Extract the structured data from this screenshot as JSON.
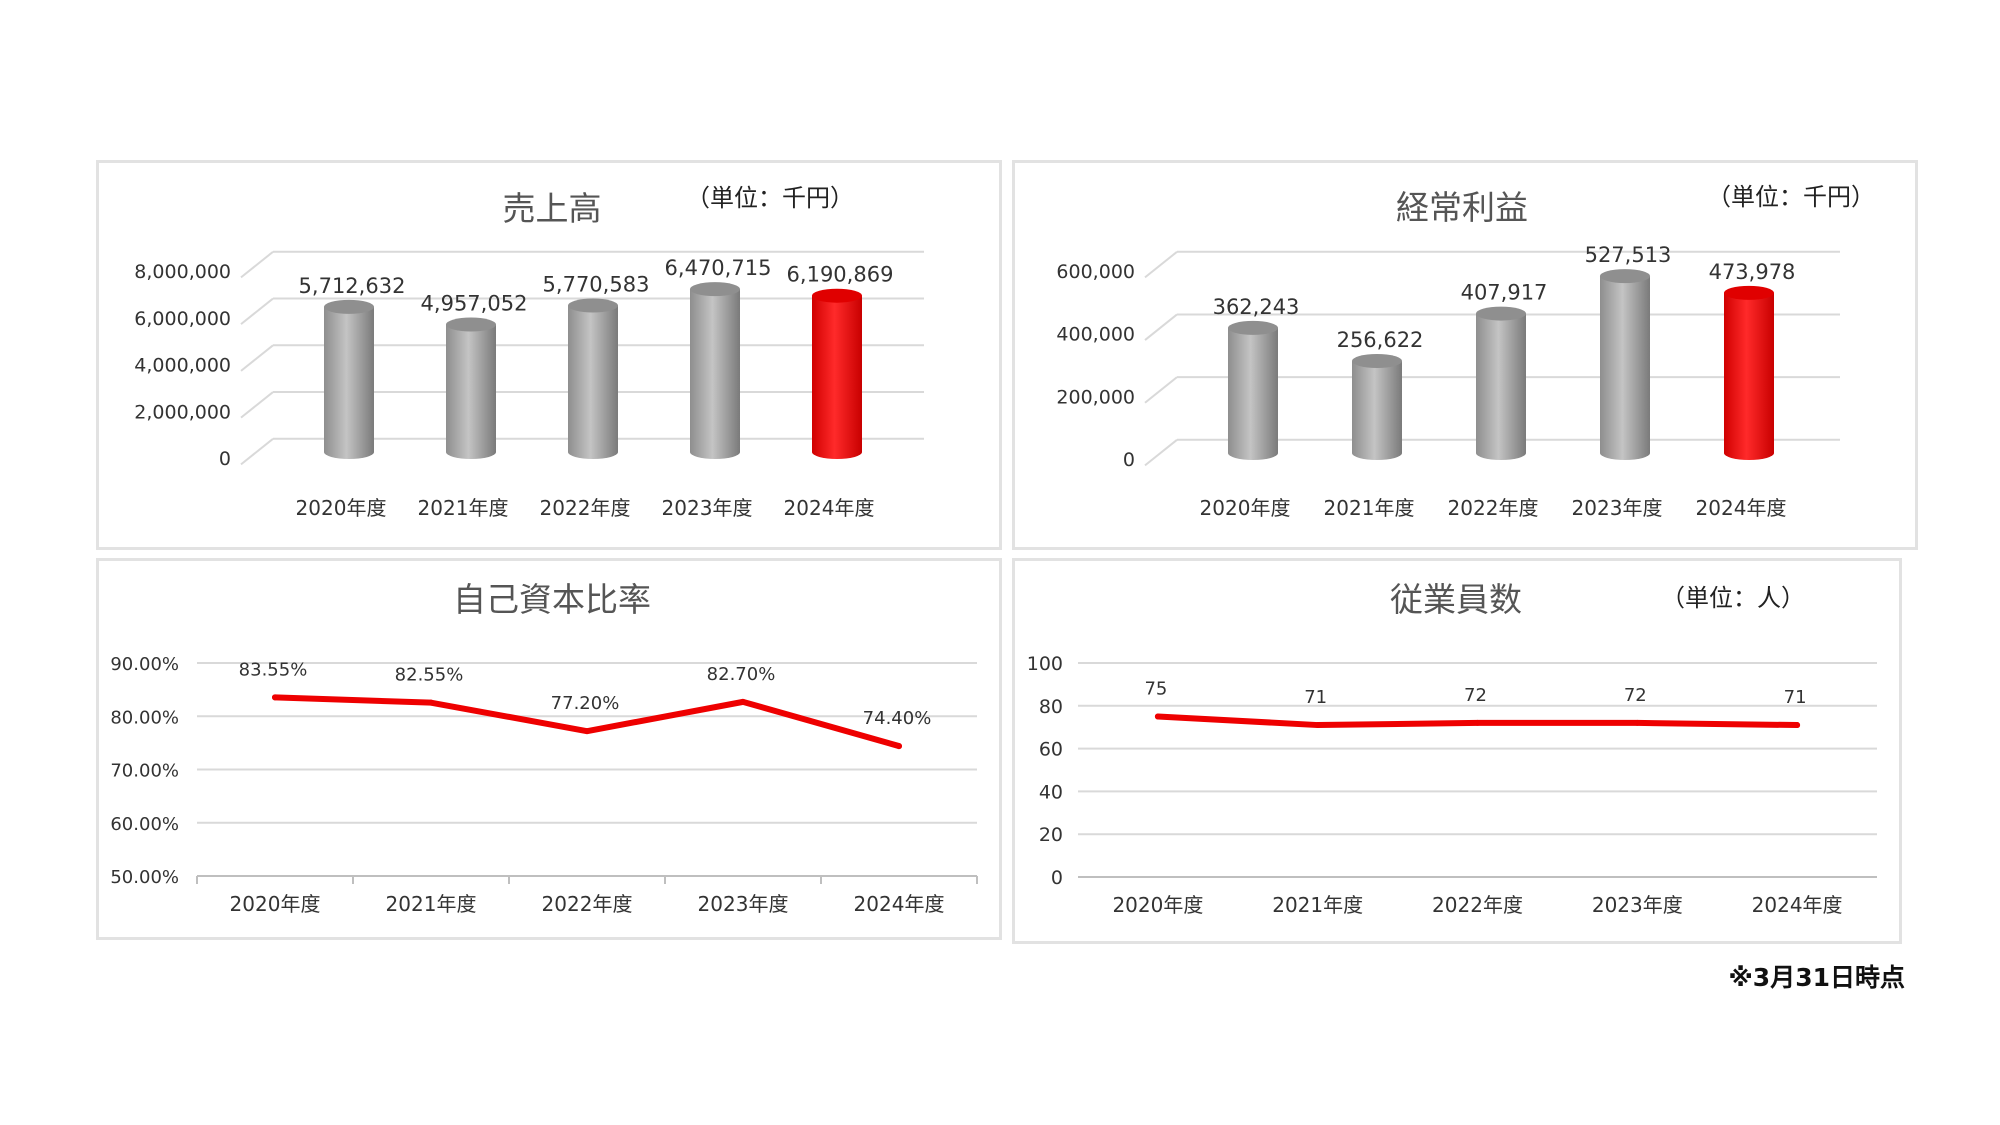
{
  "footnote": "※3月31日時点",
  "colors": {
    "gray_bar": "#a9a9a9",
    "highlight": "#ee0000",
    "line": "#ee0000",
    "grid": "#d9d9d9"
  },
  "chart_data": [
    {
      "type": "bar",
      "title": "売上高",
      "unit": "（単位：千円）",
      "categories": [
        "2020年度",
        "2021年度",
        "2022年度",
        "2023年度",
        "2024年度"
      ],
      "values": [
        5712632,
        4957052,
        5770583,
        6470715,
        6190869
      ],
      "value_labels": [
        "5,712,632",
        "4,957,052",
        "5,770,583",
        "6,470,715",
        "6,190,869"
      ],
      "y_ticks": [
        "0",
        "2,000,000",
        "4,000,000",
        "6,000,000",
        "8,000,000"
      ],
      "ylim": [
        0,
        8000000
      ],
      "highlight_index": 4,
      "grid": true
    },
    {
      "type": "bar",
      "title": "経常利益",
      "unit": "（単位：千円）",
      "categories": [
        "2020年度",
        "2021年度",
        "2022年度",
        "2023年度",
        "2024年度"
      ],
      "values": [
        362243,
        256622,
        407917,
        527513,
        473978
      ],
      "value_labels": [
        "362,243",
        "256,622",
        "407,917",
        "527,513",
        "473,978"
      ],
      "y_ticks": [
        "0",
        "200,000",
        "400,000",
        "600,000"
      ],
      "ylim": [
        0,
        600000
      ],
      "highlight_index": 4,
      "grid": true
    },
    {
      "type": "line",
      "title": "自己資本比率",
      "categories": [
        "2020年度",
        "2021年度",
        "2022年度",
        "2023年度",
        "2024年度"
      ],
      "values": [
        83.55,
        82.55,
        77.2,
        82.7,
        74.4
      ],
      "value_labels": [
        "83.55%",
        "82.55%",
        "77.20%",
        "82.70%",
        "74.40%"
      ],
      "y_ticks": [
        "50.00%",
        "60.00%",
        "70.00%",
        "80.00%",
        "90.00%"
      ],
      "ylim": [
        50,
        90
      ],
      "grid": true
    },
    {
      "type": "line",
      "title": "従業員数",
      "unit": "（単位：人）",
      "categories": [
        "2020年度",
        "2021年度",
        "2022年度",
        "2023年度",
        "2024年度"
      ],
      "values": [
        75,
        71,
        72,
        72,
        71
      ],
      "value_labels": [
        "75",
        "71",
        "72",
        "72",
        "71"
      ],
      "y_ticks": [
        "0",
        "20",
        "40",
        "60",
        "80",
        "100"
      ],
      "ylim": [
        0,
        100
      ],
      "grid": true
    }
  ]
}
